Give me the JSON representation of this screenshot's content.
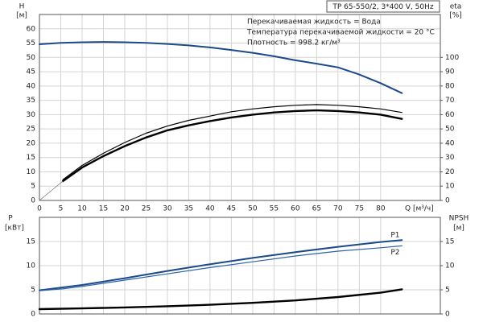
{
  "chart_data": [
    {
      "type": "line",
      "title": "TP 65-550/2, 3*400 V, 50Hz",
      "annotations": [
        "Перекачиваемая жидкость = Вода",
        "Температура перекачиваемой жидкости = 20 °C",
        "Плотность = 998.2 кг/м³"
      ],
      "ylabel": "H",
      "yunit": "[м]",
      "y2label": "eta",
      "y2unit": "[%]",
      "xlabel": "Q [м³/ч]",
      "xlim": [
        0,
        94
      ],
      "xticks": [
        0,
        5,
        10,
        15,
        20,
        25,
        30,
        35,
        40,
        45,
        50,
        55,
        60,
        65,
        70,
        75,
        80
      ],
      "ylim": [
        0,
        65
      ],
      "yticks": [
        0,
        5,
        10,
        15,
        20,
        25,
        30,
        35,
        40,
        45,
        50,
        55,
        60
      ],
      "y2lim": [
        0,
        130
      ],
      "y2ticks": [
        0,
        10,
        20,
        30,
        40,
        50,
        60,
        70,
        80,
        90,
        100
      ],
      "grid": true,
      "series": [
        {
          "color": "#1a4a8a",
          "x": [
            0,
            5,
            10,
            15,
            20,
            25,
            30,
            35,
            40,
            45,
            50,
            55,
            60,
            65,
            70,
            75,
            80,
            85
          ],
          "values": [
            54.6,
            55.1,
            55.3,
            55.4,
            55.3,
            55.1,
            54.7,
            54.2,
            53.5,
            52.6,
            51.6,
            50.4,
            49.0,
            47.8,
            46.5,
            44.0,
            41.0,
            37.5
          ]
        },
        {
          "color": "#000000",
          "axis": "y2",
          "x": [
            5.5,
            10,
            15,
            20,
            25,
            30,
            35,
            40,
            45,
            50,
            55,
            60,
            65,
            70,
            75,
            80,
            85
          ],
          "values": [
            14.5,
            24.5,
            33,
            40.5,
            47,
            52,
            56,
            59,
            62,
            64,
            65.5,
            66.5,
            67,
            66.5,
            65.5,
            64,
            61.5
          ]
        },
        {
          "color": "#000000",
          "axis": "y2",
          "x": [
            5.5,
            10,
            15,
            20,
            25,
            30,
            35,
            40,
            45,
            50,
            55,
            60,
            65,
            70,
            75,
            80,
            85
          ],
          "values": [
            13.5,
            23,
            31,
            38,
            44,
            49,
            52.5,
            55.5,
            58,
            60,
            61.5,
            62.5,
            63,
            62.5,
            61.5,
            60,
            57
          ]
        },
        {
          "color": "#777777",
          "axis": "y2",
          "x": [
            0,
            5.5
          ],
          "values": [
            0,
            13.5
          ]
        }
      ]
    },
    {
      "type": "line",
      "ylabel": "P",
      "yunit": "[кВт]",
      "y2label": "NPSH",
      "y2unit": "[м]",
      "xlim": [
        0,
        94
      ],
      "xticks": [
        0,
        5,
        10,
        15,
        20,
        25,
        30,
        35,
        40,
        45,
        50,
        55,
        60,
        65,
        70,
        75,
        80
      ],
      "ylim": [
        0,
        20
      ],
      "yticks": [
        0,
        5,
        10,
        15
      ],
      "y2lim": [
        0,
        20
      ],
      "y2ticks": [
        0,
        5,
        10,
        15
      ],
      "grid": true,
      "series": [
        {
          "name": "P1",
          "color": "#1a4a8a",
          "x": [
            0,
            5.5,
            10,
            20,
            30,
            40,
            50,
            60,
            70,
            80,
            85
          ],
          "values": [
            4.9,
            5.5,
            6.0,
            7.4,
            8.9,
            10.3,
            11.6,
            12.8,
            13.9,
            14.9,
            15.3
          ]
        },
        {
          "name": "P2",
          "color": "#2a64a8",
          "x": [
            0,
            5.5,
            10,
            20,
            30,
            40,
            50,
            60,
            70,
            80,
            85
          ],
          "values": [
            4.8,
            5.2,
            5.7,
            7.0,
            8.3,
            9.6,
            10.8,
            12.0,
            13.0,
            13.7,
            14.1
          ]
        },
        {
          "color": "#000000",
          "axis": "y2",
          "x": [
            0,
            10,
            20,
            30,
            40,
            50,
            60,
            70,
            80,
            85
          ],
          "values": [
            1.0,
            1.15,
            1.35,
            1.6,
            1.9,
            2.3,
            2.8,
            3.5,
            4.4,
            5.1
          ]
        }
      ]
    }
  ]
}
